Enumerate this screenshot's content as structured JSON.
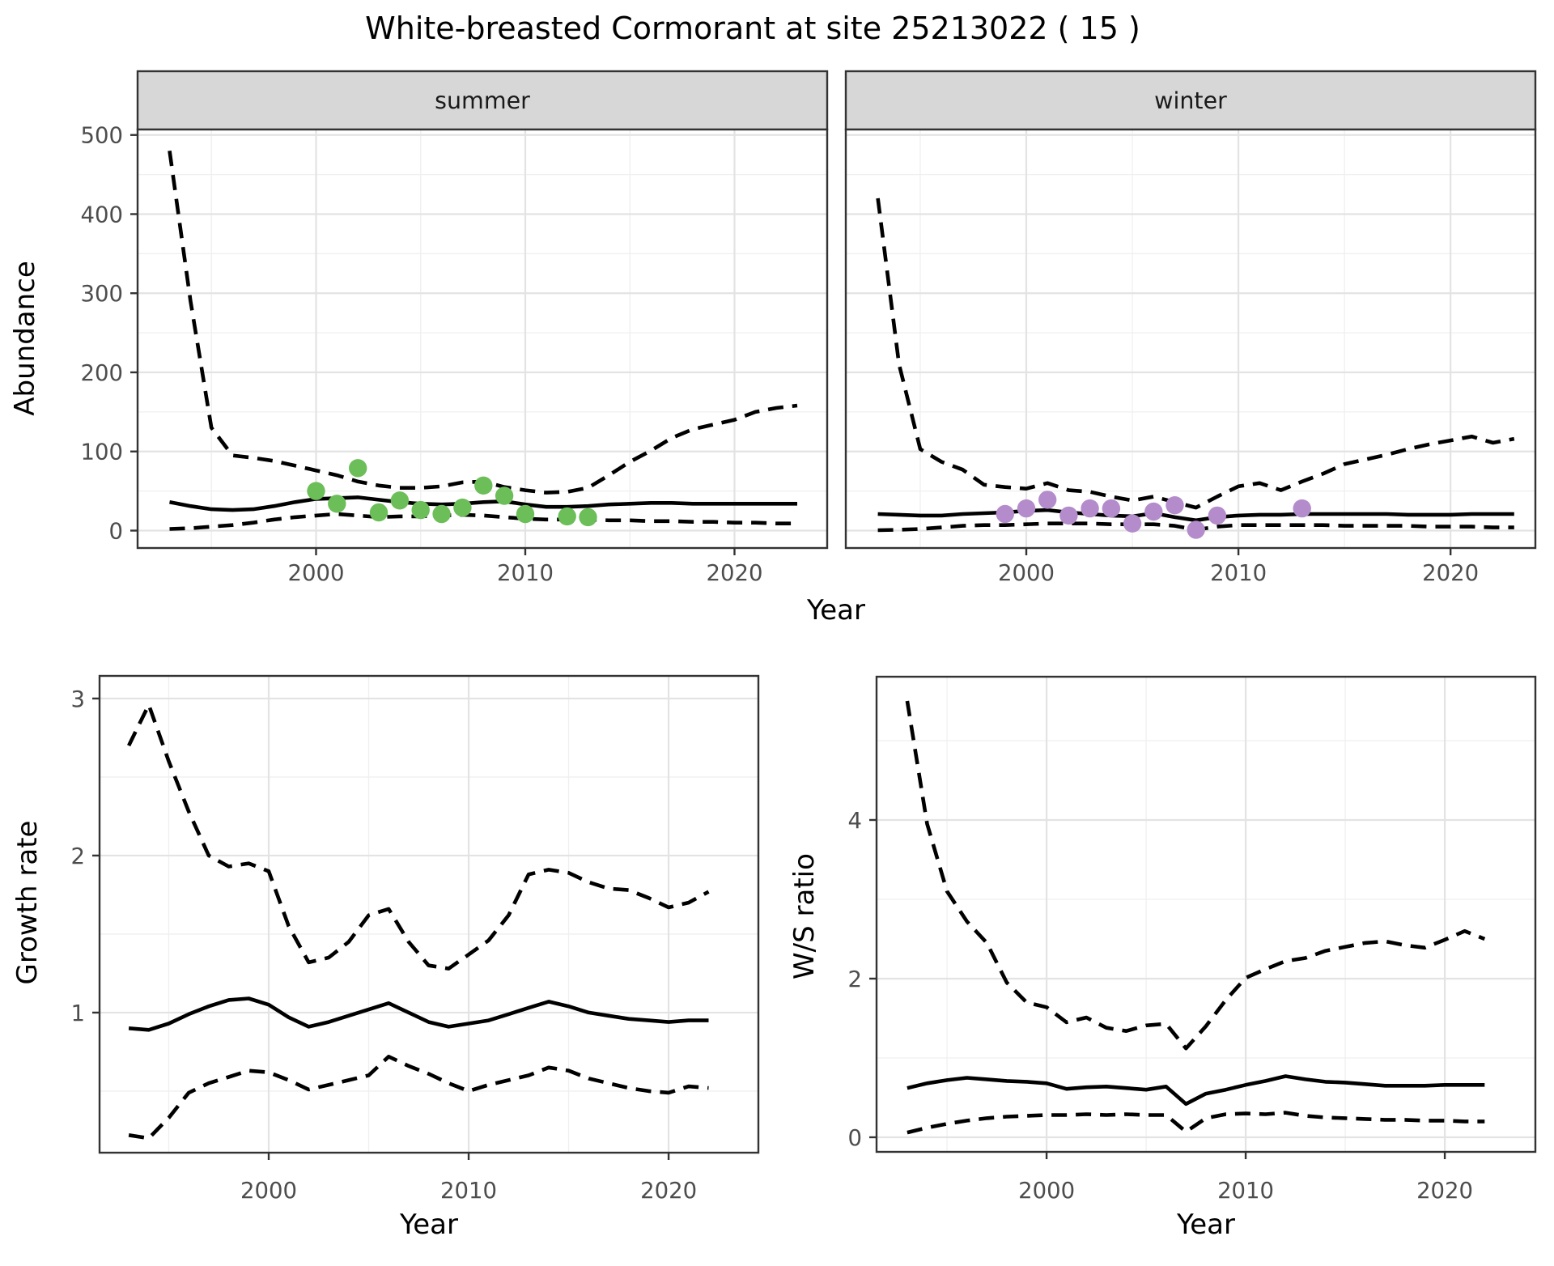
{
  "title": "White-breasted Cormorant at site 25213022 ( 15 )",
  "colors": {
    "line": "#000000",
    "summer_points": "#6cbe59",
    "winter_points": "#b48ccb",
    "strip_bg": "#d7d7d7",
    "grid_major": "#e3e3e3",
    "grid_minor": "#efefef",
    "border": "#333333",
    "tick_text": "#4d4d4d"
  },
  "chart_data": [
    {
      "id": "abundance_summer",
      "type": "line",
      "facet": "summer",
      "xlabel": "Year",
      "ylabel": "Abundance",
      "xlim": [
        1991.47,
        2024.43
      ],
      "ylim": [
        -22.0,
        506.9
      ],
      "xticks": [
        2000,
        2010,
        2020
      ],
      "xticks_minor": [
        1995,
        2005,
        2015
      ],
      "yticks": [
        0,
        100,
        200,
        300,
        400,
        500
      ],
      "yticks_minor": [
        50,
        150,
        250,
        350,
        450
      ],
      "years": [
        1993,
        1994,
        1995,
        1996,
        1997,
        1998,
        1999,
        2000,
        2001,
        2002,
        2003,
        2004,
        2005,
        2006,
        2007,
        2008,
        2009,
        2010,
        2011,
        2012,
        2013,
        2014,
        2015,
        2016,
        2017,
        2018,
        2019,
        2020,
        2021,
        2022,
        2023
      ],
      "series": [
        {
          "name": "upper_95ci",
          "style": "dashed",
          "values": [
            480,
            290,
            130,
            95,
            92,
            88,
            82,
            76,
            70,
            62,
            57,
            54,
            54,
            56,
            61,
            62,
            55,
            51,
            48,
            49,
            54,
            70,
            87,
            101,
            117,
            128,
            134,
            140,
            150,
            155,
            158
          ]
        },
        {
          "name": "median",
          "style": "solid",
          "values": [
            36,
            31,
            27,
            26,
            27,
            31,
            36,
            40,
            41,
            42,
            39,
            36,
            34,
            33,
            34,
            36,
            37,
            33,
            30,
            30,
            31,
            33,
            34,
            35,
            35,
            34,
            34,
            34,
            34,
            34,
            34
          ]
        },
        {
          "name": "lower_95ci",
          "style": "dashed",
          "values": [
            2,
            3,
            5,
            7,
            10,
            14,
            17,
            19,
            21,
            19,
            17,
            18,
            18,
            19,
            20,
            19,
            17,
            15,
            14,
            14,
            14,
            13,
            13,
            12,
            12,
            11,
            11,
            10,
            10,
            9,
            9
          ]
        }
      ],
      "points": {
        "name": "observed_counts",
        "color_key": "summer_points",
        "x": [
          2000,
          2001,
          2002,
          2003,
          2004,
          2005,
          2006,
          2007,
          2008,
          2009,
          2010,
          2012,
          2013
        ],
        "y": [
          50,
          34,
          79,
          23,
          38,
          26,
          21,
          29,
          57,
          44,
          21,
          18,
          17
        ]
      }
    },
    {
      "id": "abundance_winter",
      "type": "line",
      "facet": "winter",
      "xlabel": "Year",
      "ylabel": "Abundance",
      "xlim": [
        1991.49,
        2024.0
      ],
      "ylim": [
        -22.0,
        506.9
      ],
      "xticks": [
        2000,
        2010,
        2020
      ],
      "xticks_minor": [
        1995,
        2005,
        2015
      ],
      "yticks": [
        0,
        100,
        200,
        300,
        400,
        500
      ],
      "yticks_minor": [
        50,
        150,
        250,
        350,
        450
      ],
      "years": [
        1993,
        1994,
        1995,
        1996,
        1997,
        1998,
        1999,
        2000,
        2001,
        2002,
        2003,
        2004,
        2005,
        2006,
        2007,
        2008,
        2009,
        2010,
        2011,
        2012,
        2013,
        2014,
        2015,
        2016,
        2017,
        2018,
        2019,
        2020,
        2021,
        2022,
        2023
      ],
      "series": [
        {
          "name": "upper_95ci",
          "style": "dashed",
          "values": [
            420,
            210,
            103,
            87,
            77,
            58,
            55,
            53,
            60,
            51,
            49,
            43,
            38,
            43,
            36,
            29,
            43,
            56,
            60,
            51,
            62,
            72,
            84,
            90,
            96,
            103,
            109,
            114,
            119,
            111,
            116
          ]
        },
        {
          "name": "median",
          "style": "solid",
          "values": [
            21,
            20,
            19,
            19,
            21,
            22,
            23,
            25,
            26,
            23,
            21,
            19,
            18,
            22,
            17,
            13,
            17,
            19,
            20,
            20,
            21,
            21,
            21,
            21,
            21,
            20,
            20,
            20,
            21,
            21,
            21
          ]
        },
        {
          "name": "lower_95ci",
          "style": "dashed",
          "values": [
            0.5,
            1,
            2,
            4,
            6,
            7,
            7,
            8,
            9,
            9,
            9,
            8,
            8,
            8,
            6,
            1,
            5,
            7,
            7,
            7,
            7,
            7,
            6,
            6,
            6,
            6,
            5,
            5,
            5,
            4,
            4
          ]
        }
      ],
      "points": {
        "name": "observed_counts",
        "color_key": "winter_points",
        "x": [
          1999,
          2000,
          2001,
          2002,
          2003,
          2004,
          2005,
          2006,
          2007,
          2008,
          2009,
          2013
        ],
        "y": [
          21,
          28,
          39,
          19,
          28,
          28,
          9,
          24,
          32,
          1,
          19,
          28
        ]
      }
    },
    {
      "id": "growth_rate",
      "type": "line",
      "facet": null,
      "xlabel": "Year",
      "ylabel": "Growth rate",
      "xlim": [
        1991.54,
        2024.49
      ],
      "ylim": [
        0.108,
        3.144
      ],
      "xticks": [
        2000,
        2010,
        2020
      ],
      "xticks_minor": [
        1995,
        2005,
        2015
      ],
      "yticks": [
        1,
        2,
        3
      ],
      "yticks_minor": [
        0.5,
        1.5,
        2.5
      ],
      "years": [
        1993,
        1994,
        1995,
        1996,
        1997,
        1998,
        1999,
        2000,
        2001,
        2002,
        2003,
        2004,
        2005,
        2006,
        2007,
        2008,
        2009,
        2010,
        2011,
        2012,
        2013,
        2014,
        2015,
        2016,
        2017,
        2018,
        2019,
        2020,
        2021,
        2022
      ],
      "series": [
        {
          "name": "upper_95ci",
          "style": "dashed",
          "values": [
            2.7,
            2.96,
            2.6,
            2.28,
            2.0,
            1.93,
            1.95,
            1.9,
            1.55,
            1.32,
            1.35,
            1.45,
            1.62,
            1.66,
            1.45,
            1.3,
            1.28,
            1.37,
            1.46,
            1.62,
            1.88,
            1.91,
            1.89,
            1.83,
            1.79,
            1.78,
            1.73,
            1.67,
            1.7,
            1.77
          ]
        },
        {
          "name": "median",
          "style": "solid",
          "values": [
            0.9,
            0.89,
            0.93,
            0.99,
            1.04,
            1.08,
            1.09,
            1.05,
            0.97,
            0.91,
            0.94,
            0.98,
            1.02,
            1.06,
            1.0,
            0.94,
            0.91,
            0.93,
            0.95,
            0.99,
            1.03,
            1.07,
            1.04,
            1.0,
            0.98,
            0.96,
            0.95,
            0.94,
            0.95,
            0.95
          ]
        },
        {
          "name": "lower_95ci",
          "style": "dashed",
          "values": [
            0.22,
            0.2,
            0.33,
            0.49,
            0.55,
            0.59,
            0.63,
            0.62,
            0.57,
            0.51,
            0.54,
            0.57,
            0.6,
            0.72,
            0.66,
            0.61,
            0.55,
            0.5,
            0.54,
            0.57,
            0.6,
            0.65,
            0.63,
            0.58,
            0.55,
            0.52,
            0.5,
            0.49,
            0.53,
            0.52
          ]
        }
      ],
      "points": null
    },
    {
      "id": "ws_ratio",
      "type": "line",
      "facet": null,
      "xlabel": "Year",
      "ylabel": "W/S ratio",
      "xlim": [
        1991.46,
        2024.55
      ],
      "ylim": [
        -0.184,
        5.806
      ],
      "xticks": [
        2000,
        2010,
        2020
      ],
      "xticks_minor": [
        1995,
        2005,
        2015
      ],
      "yticks": [
        0,
        2,
        4
      ],
      "yticks_minor": [
        1,
        3,
        5
      ],
      "years": [
        1993,
        1994,
        1995,
        1996,
        1997,
        1998,
        1999,
        2000,
        2001,
        2002,
        2003,
        2004,
        2005,
        2006,
        2007,
        2008,
        2009,
        2010,
        2011,
        2012,
        2013,
        2014,
        2015,
        2016,
        2017,
        2018,
        2019,
        2020,
        2021,
        2022
      ],
      "series": [
        {
          "name": "upper_95ci",
          "style": "dashed",
          "values": [
            5.5,
            3.95,
            3.1,
            2.72,
            2.45,
            1.95,
            1.7,
            1.64,
            1.45,
            1.51,
            1.38,
            1.34,
            1.41,
            1.43,
            1.12,
            1.4,
            1.73,
            2.01,
            2.12,
            2.22,
            2.26,
            2.35,
            2.4,
            2.45,
            2.47,
            2.42,
            2.39,
            2.49,
            2.6,
            2.5
          ]
        },
        {
          "name": "median",
          "style": "solid",
          "values": [
            0.62,
            0.68,
            0.72,
            0.75,
            0.73,
            0.71,
            0.7,
            0.68,
            0.61,
            0.63,
            0.64,
            0.62,
            0.6,
            0.64,
            0.42,
            0.55,
            0.6,
            0.66,
            0.71,
            0.77,
            0.73,
            0.7,
            0.69,
            0.67,
            0.65,
            0.65,
            0.65,
            0.66,
            0.66,
            0.66
          ]
        },
        {
          "name": "lower_95ci",
          "style": "dashed",
          "values": [
            0.06,
            0.12,
            0.17,
            0.21,
            0.24,
            0.26,
            0.27,
            0.28,
            0.28,
            0.29,
            0.28,
            0.29,
            0.28,
            0.28,
            0.07,
            0.24,
            0.29,
            0.3,
            0.29,
            0.31,
            0.27,
            0.25,
            0.24,
            0.23,
            0.22,
            0.22,
            0.21,
            0.21,
            0.2,
            0.2
          ]
        }
      ],
      "points": null
    }
  ]
}
